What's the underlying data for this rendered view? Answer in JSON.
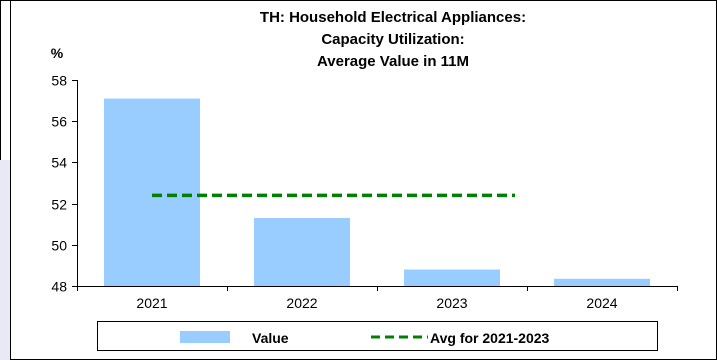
{
  "chart_data": {
    "type": "bar",
    "title_lines": [
      "TH: Household Electrical Appliances:",
      "Capacity Utilization:",
      "Average Value in 11M"
    ],
    "ylabel": "%",
    "categories": [
      "2021",
      "2022",
      "2023",
      "2024"
    ],
    "series": [
      {
        "name": "Value",
        "type": "bar",
        "values": [
          57.1,
          51.3,
          48.8,
          48.35
        ],
        "color": "#99ccff"
      },
      {
        "name": "Avg for 2021-2023",
        "type": "line",
        "style": "dashed",
        "value": 52.4,
        "color": "#008000",
        "span": [
          "2021",
          "2023"
        ]
      }
    ],
    "ylim": [
      48,
      58
    ],
    "yticks": [
      "48",
      "50",
      "52",
      "54",
      "56",
      "58"
    ],
    "grid": false,
    "legend_position": "bottom"
  }
}
